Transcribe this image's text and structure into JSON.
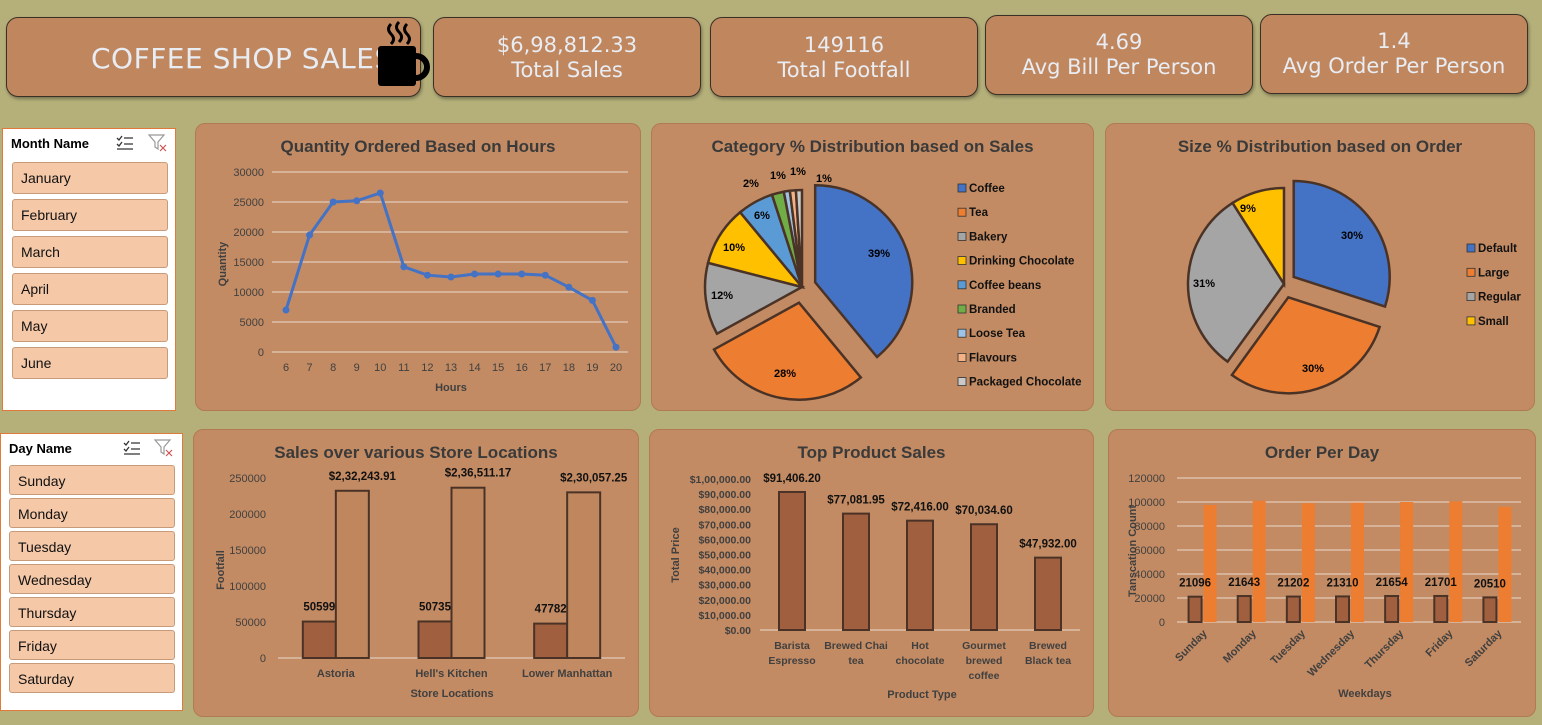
{
  "header": {
    "title": "COFFEE SHOP SALES",
    "icon": "coffee-cup-icon"
  },
  "kpis": [
    {
      "value": "$6,98,812.33",
      "label": "Total Sales"
    },
    {
      "value": "149116",
      "label": "Total Footfall"
    },
    {
      "value": "4.69",
      "label": "Avg Bill Per Person"
    },
    {
      "value": "1.4",
      "label": "Avg Order Per Person"
    }
  ],
  "month_slicer": {
    "header": "Month Name",
    "items": [
      "January",
      "February",
      "March",
      "April",
      "May",
      "June"
    ]
  },
  "day_slicer": {
    "header": "Day Name",
    "items": [
      "Sunday",
      "Monday",
      "Tuesday",
      "Wednesday",
      "Thursday",
      "Friday",
      "Saturday"
    ]
  },
  "colors": {
    "background": "#b5b07a",
    "panel": "#c38b63",
    "line": "#4472c4",
    "bar_brown": "#a0603f",
    "bar_orange": "#ed7d31"
  },
  "chart_data": [
    {
      "type": "line",
      "title": "Quantity Ordered Based on Hours",
      "xlabel": "Hours",
      "ylabel": "Quantity",
      "x": [
        6,
        7,
        8,
        9,
        10,
        11,
        12,
        13,
        14,
        15,
        16,
        17,
        18,
        19,
        20
      ],
      "values": [
        7000,
        19500,
        25000,
        25200,
        26500,
        14200,
        12800,
        12500,
        13000,
        13000,
        13000,
        12800,
        10800,
        8600,
        800
      ],
      "ylim": [
        0,
        30000
      ],
      "yticks": [
        "0",
        "5000",
        "10000",
        "15000",
        "20000",
        "25000",
        "30000"
      ]
    },
    {
      "type": "pie",
      "title": "Category % Distribution based on Sales",
      "categories": [
        "Coffee",
        "Tea",
        "Bakery",
        "Drinking Chocolate",
        "Coffee beans",
        "Branded",
        "Loose Tea",
        "Flavours",
        "Packaged Chocolate"
      ],
      "values": [
        39,
        28,
        12,
        10,
        6,
        2,
        1,
        1,
        1
      ],
      "labels": [
        "39%",
        "28%",
        "12%",
        "10%",
        "6%",
        "2%",
        "1%",
        "1%",
        "1%"
      ],
      "colors": [
        "#4472c4",
        "#ed7d31",
        "#a5a5a5",
        "#ffc000",
        "#5b9bd5",
        "#70ad47",
        "#9dc3e6",
        "#f4b183",
        "#c9c9c9"
      ],
      "legend": "right"
    },
    {
      "type": "pie",
      "title": "Size % Distribution based on Order",
      "categories": [
        "Default",
        "Large",
        "Regular",
        "Small"
      ],
      "values": [
        30,
        30,
        31,
        9
      ],
      "labels": [
        "30%",
        "30%",
        "31%",
        "9%"
      ],
      "colors": [
        "#4472c4",
        "#ed7d31",
        "#a5a5a5",
        "#ffc000"
      ],
      "legend": "right"
    },
    {
      "type": "bar",
      "title": "Sales over various Store Locations",
      "xlabel": "Store Locations",
      "ylabel": "Footfall",
      "categories": [
        "Astoria",
        "Hell's Kitchen",
        "Lower Manhattan"
      ],
      "series": [
        {
          "values": [
            50599,
            50735,
            47782
          ],
          "labels": [
            "50599",
            "50735",
            "47782"
          ]
        },
        {
          "values": [
            232243.91,
            236511.17,
            230057.25
          ],
          "labels": [
            "$2,32,243.91",
            "$2,36,511.17",
            "$2,30,057.25"
          ]
        }
      ],
      "ylim": [
        0,
        250000
      ],
      "yticks": [
        "0",
        "50000",
        "100000",
        "150000",
        "200000",
        "250000"
      ]
    },
    {
      "type": "bar",
      "title": "Top Product Sales",
      "xlabel": "Product Type",
      "ylabel": "Total Price",
      "categories": [
        "Barista Espresso",
        "Brewed Chai tea",
        "Hot chocolate",
        "Gourmet brewed coffee",
        "Brewed Black tea"
      ],
      "values": [
        91406.2,
        77081.95,
        72416.0,
        70034.6,
        47932.0
      ],
      "labels": [
        "$91,406.20",
        "$77,081.95",
        "$72,416.00",
        "$70,034.60",
        "$47,932.00"
      ],
      "ylim": [
        0,
        100000
      ],
      "yticks": [
        "$0.00",
        "$10,000.00",
        "$20,000.00",
        "$30,000.00",
        "$40,000.00",
        "$50,000.00",
        "$60,000.00",
        "$70,000.00",
        "$80,000.00",
        "$90,000.00",
        "$1,00,000.00"
      ]
    },
    {
      "type": "bar",
      "title": "Order Per Day",
      "xlabel": "Weekdays",
      "ylabel": "Tanscation Count",
      "categories": [
        "Sunday",
        "Monday",
        "Tuesday",
        "Wednesday",
        "Thursday",
        "Friday",
        "Saturday"
      ],
      "series": [
        {
          "values": [
            21096,
            21643,
            21202,
            21310,
            21654,
            21701,
            20510
          ],
          "labels": [
            "21096",
            "21643",
            "21202",
            "21310",
            "21654",
            "21701",
            "20510"
          ]
        },
        {
          "values": [
            97500,
            101000,
            99000,
            99500,
            100000,
            100500,
            96000
          ]
        }
      ],
      "ylim": [
        0,
        120000
      ],
      "yticks": [
        "0",
        "20000",
        "40000",
        "60000",
        "80000",
        "100000",
        "120000"
      ]
    }
  ]
}
